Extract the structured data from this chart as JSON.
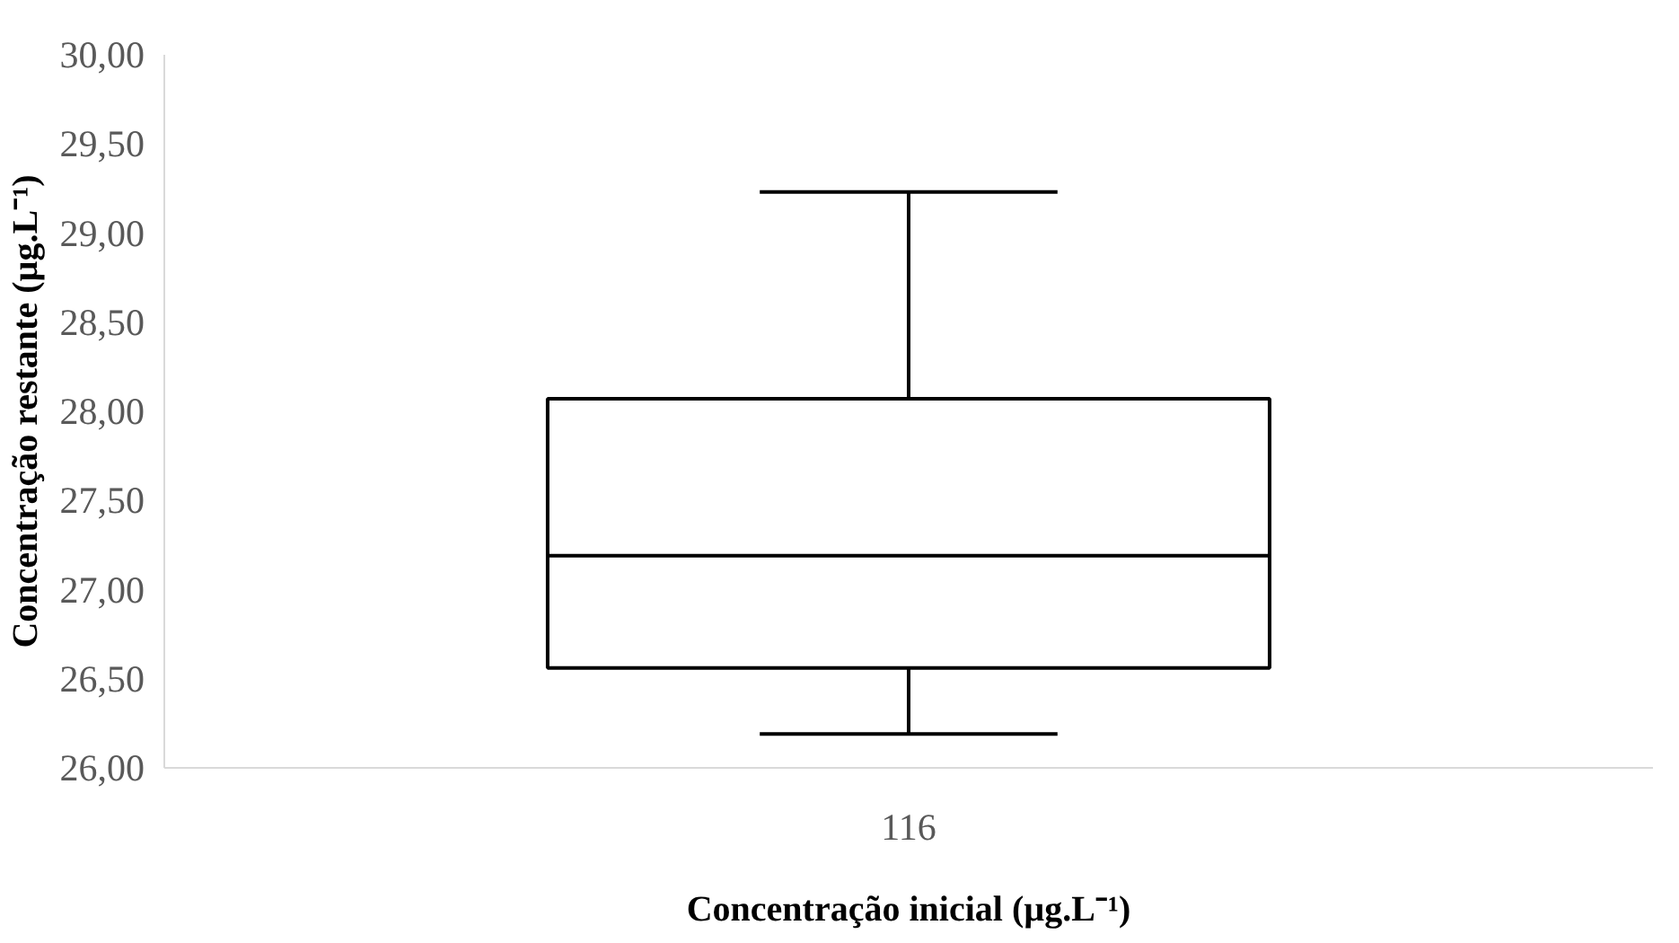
{
  "chart_data": {
    "type": "box",
    "xlabel": "Concentração inicial (µg.L⁻¹)",
    "ylabel": "Concentração restante (µg.L⁻¹)",
    "categories": [
      "116"
    ],
    "boxes": [
      {
        "low": 26.19,
        "q1": 26.56,
        "median": 27.19,
        "q3": 28.07,
        "high": 29.23
      }
    ],
    "color": "#000000",
    "ylim": [
      26,
      30
    ],
    "yticks": [
      {
        "value": 26,
        "label": "26,00"
      },
      {
        "value": 26.5,
        "label": "26,50"
      },
      {
        "value": 27,
        "label": "27,00"
      },
      {
        "value": 27.5,
        "label": "27,50"
      },
      {
        "value": 28,
        "label": "28,00"
      },
      {
        "value": 28.5,
        "label": "28,50"
      },
      {
        "value": 29,
        "label": "29,00"
      },
      {
        "value": 29.5,
        "label": "29,50"
      },
      {
        "value": 30,
        "label": "30,00"
      }
    ],
    "grid": false
  }
}
